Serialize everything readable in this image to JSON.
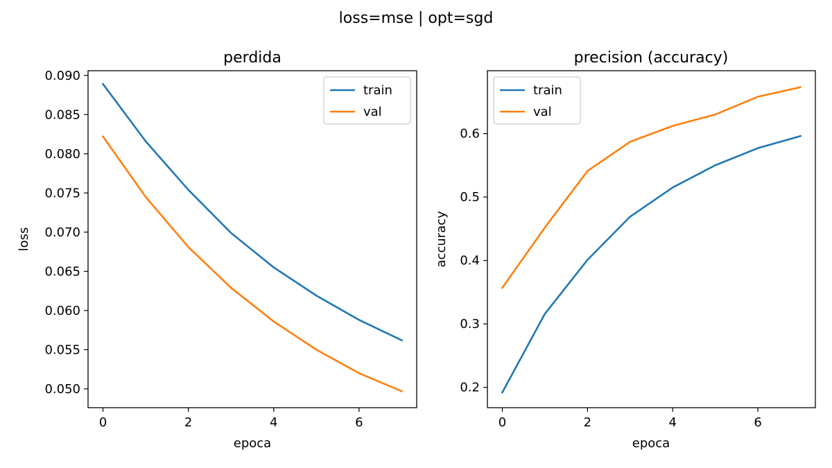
{
  "figure": {
    "suptitle": "loss=mse | opt=sgd"
  },
  "chart_data": [
    {
      "type": "line",
      "title": "perdida",
      "xlabel": "epoca",
      "ylabel": "loss",
      "x": [
        0,
        1,
        2,
        3,
        4,
        5,
        6,
        7
      ],
      "xlim": [
        -0.35,
        7.35
      ],
      "ylim": [
        0.0476,
        0.0906
      ],
      "xticks": [
        0,
        2,
        4,
        6
      ],
      "yticks": [
        0.05,
        0.055,
        0.06,
        0.065,
        0.07,
        0.075,
        0.08,
        0.085,
        0.09
      ],
      "ytick_labels": [
        "0.050",
        "0.055",
        "0.060",
        "0.065",
        "0.070",
        "0.075",
        "0.080",
        "0.085",
        "0.090"
      ],
      "grid": false,
      "legend": "top-right",
      "series": [
        {
          "name": "train",
          "color": "#1f77b4",
          "values": [
            0.0889,
            0.0816,
            0.0754,
            0.0699,
            0.0655,
            0.0619,
            0.0588,
            0.0562
          ]
        },
        {
          "name": "val",
          "color": "#ff7f0e",
          "values": [
            0.0822,
            0.0745,
            0.0681,
            0.0629,
            0.0586,
            0.055,
            0.052,
            0.0497
          ]
        }
      ]
    },
    {
      "type": "line",
      "title": "precision (accuracy)",
      "xlabel": "epoca",
      "ylabel": "accuracy",
      "x": [
        0,
        1,
        2,
        3,
        4,
        5,
        6,
        7
      ],
      "xlim": [
        -0.35,
        7.35
      ],
      "ylim": [
        0.168,
        0.699
      ],
      "xticks": [
        0,
        2,
        4,
        6
      ],
      "yticks": [
        0.2,
        0.3,
        0.4,
        0.5,
        0.6
      ],
      "ytick_labels": [
        "0.2",
        "0.3",
        "0.4",
        "0.5",
        "0.6"
      ],
      "grid": false,
      "legend": "top-left",
      "series": [
        {
          "name": "train",
          "color": "#1f77b4",
          "values": [
            0.192,
            0.316,
            0.401,
            0.469,
            0.515,
            0.55,
            0.577,
            0.596
          ]
        },
        {
          "name": "val",
          "color": "#ff7f0e",
          "values": [
            0.357,
            0.452,
            0.541,
            0.587,
            0.612,
            0.63,
            0.658,
            0.673
          ]
        }
      ]
    }
  ]
}
